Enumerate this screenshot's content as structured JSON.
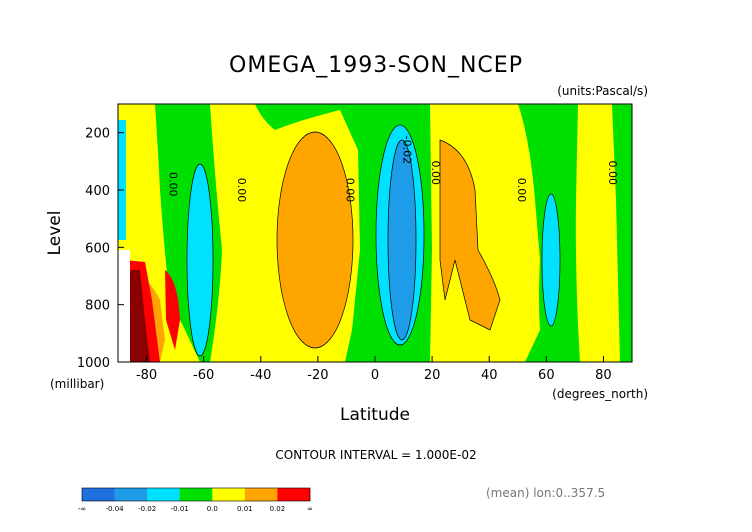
{
  "title": "OMEGA_1993-SON_NCEP",
  "units": "(units:Pascal/s)",
  "xlabel": "Latitude",
  "ylabel": "Level",
  "yunits": "(millibar)",
  "xunits": "(degrees_north)",
  "contour_interval": "CONTOUR INTERVAL = 1.000E-02",
  "mean_note": "(mean) lon:0..357.5",
  "chart_data": {
    "type": "heatmap",
    "title": "OMEGA_1993-SON_NCEP",
    "xlabel": "Latitude",
    "ylabel": "Level",
    "x_units": "degrees_north",
    "y_units": "millibar",
    "xlim": [
      -90,
      90
    ],
    "ylim": [
      1000,
      100
    ],
    "x_ticks": [
      -80,
      -60,
      -40,
      -20,
      0,
      20,
      40,
      60,
      80
    ],
    "y_ticks": [
      200,
      400,
      600,
      800,
      1000
    ],
    "contour_labels": [
      {
        "text": "0.00",
        "lat": -72,
        "level": 380
      },
      {
        "text": "0.00",
        "lat": -48,
        "level": 400
      },
      {
        "text": "0.00",
        "lat": -10,
        "level": 400
      },
      {
        "text": "-0.02",
        "lat": 10,
        "level": 260
      },
      {
        "text": "0.00",
        "lat": 20,
        "level": 340
      },
      {
        "text": "0.00",
        "lat": 50,
        "level": 400
      },
      {
        "text": "0.00",
        "lat": 82,
        "level": 340
      }
    ],
    "bands": [
      {
        "level": "-∞",
        "color": "#1e6fe0"
      },
      {
        "level": "-0.04",
        "color": "#1e9ce8"
      },
      {
        "level": "-0.02",
        "color": "#00e0ff"
      },
      {
        "level": "-0.01",
        "color": "#00e000"
      },
      {
        "level": "0.0",
        "color": "#ffff00"
      },
      {
        "level": "0.01",
        "color": "#ffa500"
      },
      {
        "level": "0.02",
        "color": "#ff0000"
      },
      {
        "level": "∞",
        "color": "#8b0000"
      }
    ],
    "colorbar_ticks": [
      "-∞",
      "-0.04",
      "-0.02",
      "-0.01",
      "0.0",
      "0.01",
      "0.02",
      "∞"
    ],
    "colorbar_colors": [
      "#1e6fe0",
      "#1e6fe0",
      "#1e9ce8",
      "#1e9ce8",
      "#00e0ff",
      "#00e0ff",
      "#00e000",
      "#00e000",
      "#ffff00",
      "#ffff00",
      "#ffa500",
      "#ffa500",
      "#ff0000",
      "#ff0000"
    ]
  }
}
